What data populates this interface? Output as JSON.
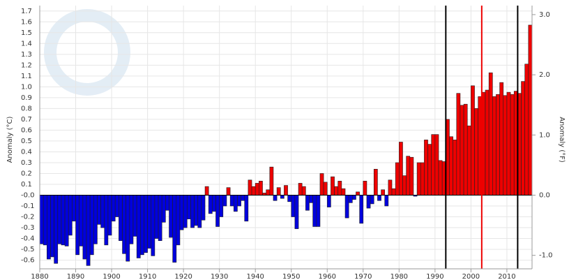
{
  "chart_data": {
    "type": "bar",
    "y_label": "Anomaly (°C)",
    "y2_label": "Anomaly (°F)",
    "x": [
      1880,
      1881,
      1882,
      1883,
      1884,
      1885,
      1886,
      1887,
      1888,
      1889,
      1890,
      1891,
      1892,
      1893,
      1894,
      1895,
      1896,
      1897,
      1898,
      1899,
      1900,
      1901,
      1902,
      1903,
      1904,
      1905,
      1906,
      1907,
      1908,
      1909,
      1910,
      1911,
      1912,
      1913,
      1914,
      1915,
      1916,
      1917,
      1918,
      1919,
      1920,
      1921,
      1922,
      1923,
      1924,
      1925,
      1926,
      1927,
      1928,
      1929,
      1930,
      1931,
      1932,
      1933,
      1934,
      1935,
      1936,
      1937,
      1938,
      1939,
      1940,
      1941,
      1942,
      1943,
      1944,
      1945,
      1946,
      1947,
      1948,
      1949,
      1950,
      1951,
      1952,
      1953,
      1954,
      1955,
      1956,
      1957,
      1958,
      1959,
      1960,
      1961,
      1962,
      1963,
      1964,
      1965,
      1966,
      1967,
      1968,
      1969,
      1970,
      1971,
      1972,
      1973,
      1974,
      1975,
      1976,
      1977,
      1978,
      1979,
      1980,
      1981,
      1982,
      1983,
      1984,
      1985,
      1986,
      1987,
      1988,
      1989,
      1990,
      1991,
      1992,
      1993,
      1994,
      1995,
      1996,
      1997,
      1998,
      1999,
      2000,
      2001,
      2002,
      2003,
      2004,
      2005,
      2006,
      2007,
      2008,
      2009,
      2010,
      2011,
      2012,
      2013,
      2014,
      2015,
      2016
    ],
    "values": [
      -0.45,
      -0.46,
      -0.59,
      -0.57,
      -0.63,
      -0.45,
      -0.46,
      -0.47,
      -0.37,
      -0.24,
      -0.55,
      -0.47,
      -0.59,
      -0.65,
      -0.55,
      -0.45,
      -0.27,
      -0.3,
      -0.46,
      -0.37,
      -0.24,
      -0.2,
      -0.42,
      -0.54,
      -0.61,
      -0.45,
      -0.38,
      -0.58,
      -0.55,
      -0.53,
      -0.49,
      -0.56,
      -0.4,
      -0.42,
      -0.25,
      -0.14,
      -0.39,
      -0.62,
      -0.46,
      -0.32,
      -0.3,
      -0.22,
      -0.3,
      -0.28,
      -0.3,
      -0.23,
      0.08,
      -0.17,
      -0.15,
      -0.29,
      -0.2,
      -0.1,
      0.07,
      -0.1,
      -0.15,
      -0.1,
      -0.05,
      -0.24,
      0.14,
      0.08,
      0.11,
      0.13,
      0.02,
      0.05,
      0.26,
      -0.05,
      0.07,
      -0.03,
      0.09,
      -0.06,
      -0.2,
      -0.31,
      0.11,
      0.08,
      -0.14,
      -0.07,
      -0.29,
      -0.29,
      0.2,
      0.12,
      -0.11,
      0.17,
      0.08,
      0.13,
      0.06,
      -0.21,
      -0.07,
      -0.04,
      0.03,
      -0.26,
      0.13,
      -0.12,
      -0.08,
      0.24,
      -0.05,
      0.05,
      -0.1,
      0.14,
      0.06,
      0.3,
      0.49,
      0.18,
      0.36,
      0.35,
      -0.01,
      0.3,
      0.3,
      0.51,
      0.47,
      0.56,
      0.56,
      0.32,
      0.31,
      0.7,
      0.54,
      0.51,
      0.94,
      0.83,
      0.84,
      0.64,
      1.01,
      0.8,
      0.91,
      0.95,
      0.97,
      1.13,
      0.91,
      0.93,
      1.04,
      0.92,
      0.95,
      0.93,
      0.96,
      0.94,
      1.05,
      1.21,
      1.57
    ],
    "positive_color": "#ee0000",
    "negative_color": "#0000dd",
    "xlim": [
      1880,
      2017
    ],
    "xticks": [
      1880,
      1890,
      1900,
      1910,
      1920,
      1930,
      1940,
      1950,
      1960,
      1970,
      1980,
      1990,
      2000,
      2010
    ],
    "ylim": [
      -0.68,
      1.75
    ],
    "yticks": [
      -0.6,
      -0.5,
      -0.4,
      -0.3,
      -0.2,
      -0.1,
      {
        "value": 0,
        "label": "-0.0"
      },
      0.1,
      0.2,
      0.3,
      0.4,
      0.5,
      0.6,
      0.7,
      0.8,
      0.9,
      {
        "value": 1,
        "label": "1.0"
      },
      1.1,
      1.2,
      1.3,
      1.4,
      1.5,
      1.6,
      1.7
    ],
    "y2lim": [
      -1.224,
      3.15
    ],
    "y2ticks": [
      {
        "value": -1,
        "label": "-1.0"
      },
      {
        "value": 0,
        "label": "0.0"
      },
      {
        "value": 1,
        "label": "1.0"
      },
      {
        "value": 2,
        "label": "2.0"
      },
      {
        "value": 3,
        "label": "3.0"
      }
    ],
    "vlines": [
      {
        "x": 1993,
        "color": "#000000"
      },
      {
        "x": 2003,
        "color": "#ee0000"
      },
      {
        "x": 2013,
        "color": "#000000"
      }
    ],
    "grid": true
  }
}
